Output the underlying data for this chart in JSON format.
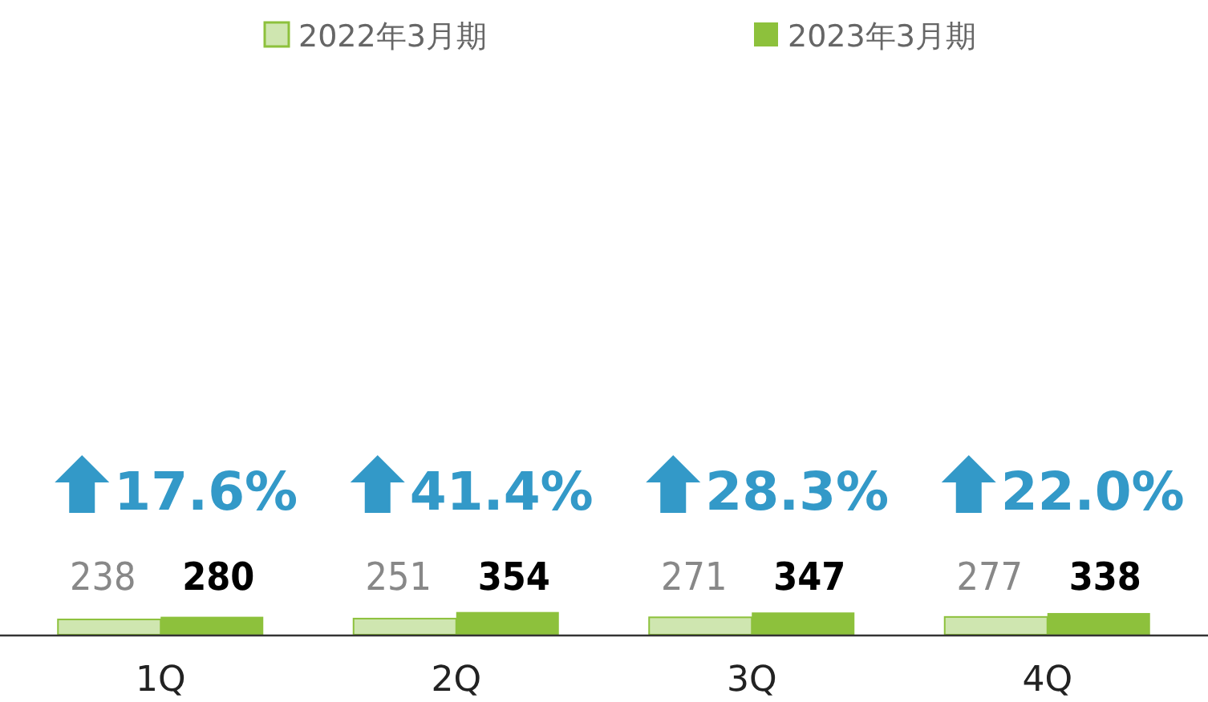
{
  "chart_data": {
    "type": "bar",
    "categories": [
      "1Q",
      "2Q",
      "3Q",
      "4Q"
    ],
    "series": [
      {
        "name": "2022年3月期",
        "color": "#cfe6b0",
        "values": [
          238,
          251,
          271,
          277
        ]
      },
      {
        "name": "2023年3月期",
        "color": "#8dc13c",
        "values": [
          280,
          354,
          347,
          338
        ]
      }
    ],
    "data_labels": true,
    "legend": "top",
    "annotations": [
      "17.6%",
      "41.4%",
      "28.3%",
      "22.0%"
    ]
  }
}
